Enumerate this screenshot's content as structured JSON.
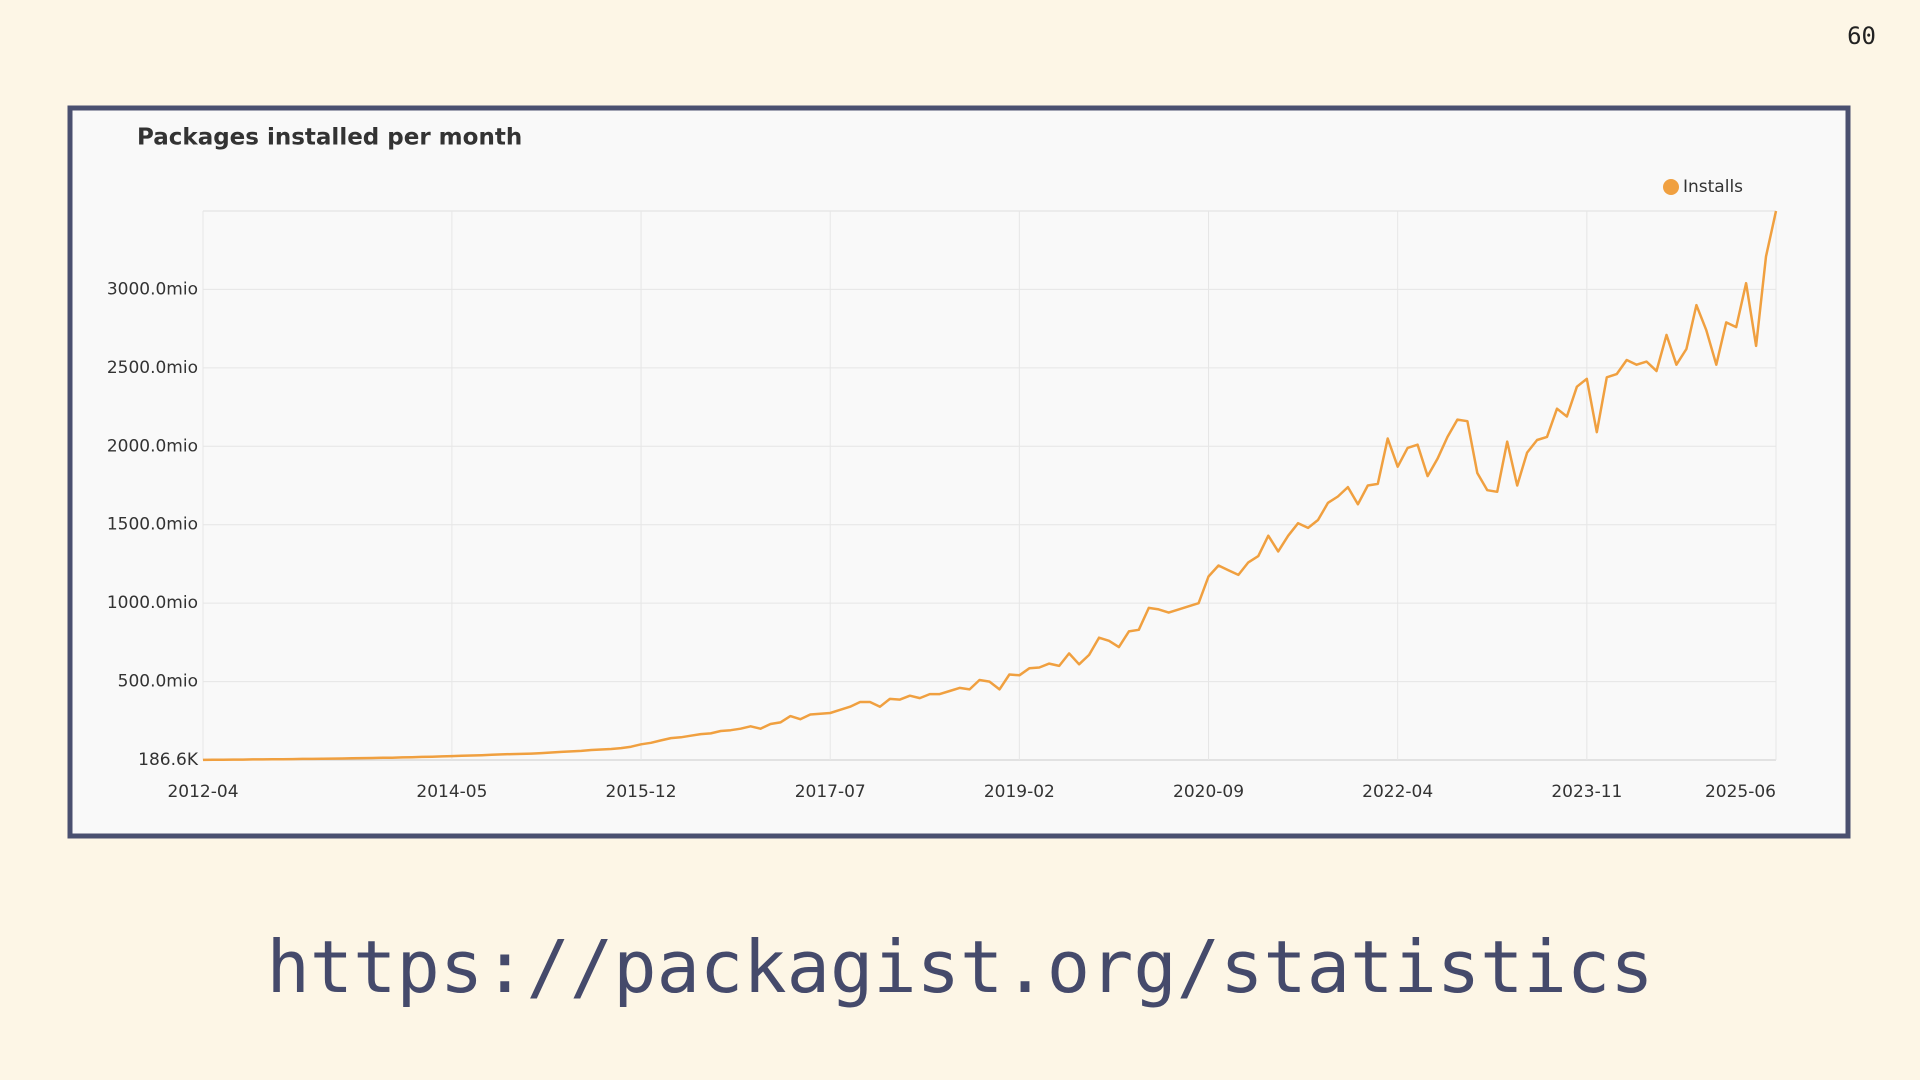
{
  "page_number": "60",
  "url": "https://packagist.org/statistics",
  "chart_data": {
    "type": "line",
    "title": "Packages installed per month",
    "x": [
      "2012-04",
      "2012-05",
      "2012-06",
      "2012-07",
      "2012-08",
      "2012-09",
      "2012-10",
      "2012-11",
      "2012-12",
      "2013-01",
      "2013-02",
      "2013-03",
      "2013-04",
      "2013-05",
      "2013-06",
      "2013-07",
      "2013-08",
      "2013-09",
      "2013-10",
      "2013-11",
      "2013-12",
      "2014-01",
      "2014-02",
      "2014-03",
      "2014-04",
      "2014-05",
      "2014-06",
      "2014-07",
      "2014-08",
      "2014-09",
      "2014-10",
      "2014-11",
      "2014-12",
      "2015-01",
      "2015-02",
      "2015-03",
      "2015-04",
      "2015-05",
      "2015-06",
      "2015-07",
      "2015-08",
      "2015-09",
      "2015-10",
      "2015-11",
      "2015-12",
      "2016-01",
      "2016-02",
      "2016-03",
      "2016-04",
      "2016-05",
      "2016-06",
      "2016-07",
      "2016-08",
      "2016-09",
      "2016-10",
      "2016-11",
      "2016-12",
      "2017-01",
      "2017-02",
      "2017-03",
      "2017-04",
      "2017-05",
      "2017-06",
      "2017-07",
      "2017-08",
      "2017-09",
      "2017-10",
      "2017-11",
      "2017-12",
      "2018-01",
      "2018-02",
      "2018-03",
      "2018-04",
      "2018-05",
      "2018-06",
      "2018-07",
      "2018-08",
      "2018-09",
      "2018-10",
      "2018-11",
      "2018-12",
      "2019-01",
      "2019-02",
      "2019-03",
      "2019-04",
      "2019-05",
      "2019-06",
      "2019-07",
      "2019-08",
      "2019-09",
      "2019-10",
      "2019-11",
      "2019-12",
      "2020-01",
      "2020-02",
      "2020-03",
      "2020-04",
      "2020-05",
      "2020-06",
      "2020-07",
      "2020-08",
      "2020-09",
      "2020-10",
      "2020-11",
      "2020-12",
      "2021-01",
      "2021-02",
      "2021-03",
      "2021-04",
      "2021-05",
      "2021-06",
      "2021-07",
      "2021-08",
      "2021-09",
      "2021-10",
      "2021-11",
      "2021-12",
      "2022-01",
      "2022-02",
      "2022-03",
      "2022-04",
      "2022-05",
      "2022-06",
      "2022-07",
      "2022-08",
      "2022-09",
      "2022-10",
      "2022-11",
      "2022-12",
      "2023-01",
      "2023-02",
      "2023-03",
      "2023-04",
      "2023-05",
      "2023-06",
      "2023-07",
      "2023-08",
      "2023-09",
      "2023-10",
      "2023-11",
      "2023-12",
      "2024-01",
      "2024-02",
      "2024-03",
      "2024-04",
      "2024-05",
      "2024-06",
      "2024-07",
      "2024-08",
      "2024-09",
      "2024-10",
      "2024-11",
      "2024-12",
      "2025-01",
      "2025-02",
      "2025-03",
      "2025-04",
      "2025-05",
      "2025-06"
    ],
    "series": [
      {
        "name": "Installs",
        "color": "#f0a040",
        "values": [
          1,
          2,
          2,
          3,
          3,
          4,
          4,
          5,
          5,
          6,
          7,
          7,
          8,
          9,
          10,
          11,
          12,
          13,
          14,
          15,
          17,
          18,
          20,
          21,
          23,
          25,
          27,
          29,
          31,
          34,
          36,
          38,
          39,
          41,
          44,
          48,
          52,
          55,
          58,
          64,
          67,
          70,
          76,
          85,
          100,
          110,
          125,
          140,
          145,
          155,
          165,
          170,
          185,
          190,
          200,
          215,
          200,
          230,
          240,
          280,
          260,
          290,
          295,
          300,
          320,
          340,
          370,
          370,
          340,
          390,
          385,
          410,
          395,
          420,
          420,
          440,
          460,
          450,
          510,
          500,
          450,
          545,
          540,
          585,
          590,
          615,
          600,
          680,
          610,
          670,
          780,
          760,
          720,
          820,
          830,
          970,
          960,
          940,
          960,
          980,
          1000,
          1170,
          1240,
          1210,
          1180,
          1260,
          1300,
          1430,
          1330,
          1430,
          1510,
          1480,
          1530,
          1640,
          1680,
          1740,
          1630,
          1750,
          1760,
          2050,
          1870,
          1990,
          2010,
          1810,
          1920,
          2060,
          2170,
          2160,
          1830,
          1720,
          1710,
          2030,
          1750,
          1960,
          2040,
          2060,
          2240,
          2190,
          2380,
          2430,
          2090,
          2440,
          2460,
          2550,
          2520,
          2540,
          2480,
          2710,
          2520,
          2620,
          2900,
          2740,
          2520,
          2790,
          2760,
          3040,
          2640,
          3210,
          3500
        ]
      }
    ],
    "xticks": [
      "2012-04",
      "2014-05",
      "2015-12",
      "2017-07",
      "2019-02",
      "2020-09",
      "2022-04",
      "2023-11",
      "2025-06"
    ],
    "ylim": [
      0.1866,
      3500
    ],
    "yticks": [
      {
        "value": 0.1866,
        "label": "186.6K"
      },
      {
        "value": 500,
        "label": "500.0mio"
      },
      {
        "value": 1000,
        "label": "1000.0mio"
      },
      {
        "value": 1500,
        "label": "1500.0mio"
      },
      {
        "value": 2000,
        "label": "2000.0mio"
      },
      {
        "value": 2500,
        "label": "2500.0mio"
      },
      {
        "value": 3000,
        "label": "3000.0mio"
      }
    ],
    "grid": true,
    "legend": "top-right"
  }
}
